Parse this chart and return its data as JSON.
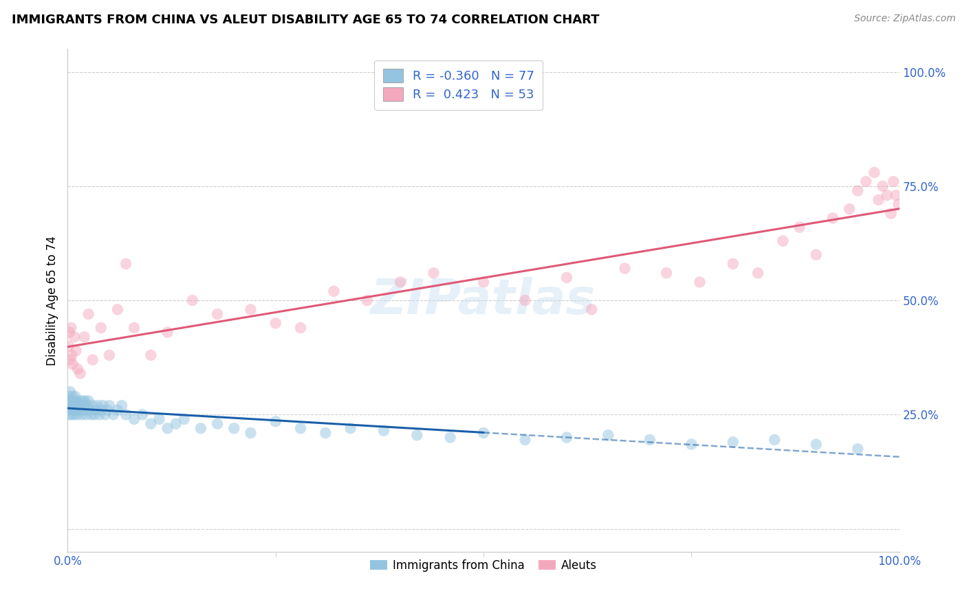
{
  "title": "IMMIGRANTS FROM CHINA VS ALEUT DISABILITY AGE 65 TO 74 CORRELATION CHART",
  "source": "Source: ZipAtlas.com",
  "ylabel": "Disability Age 65 to 74",
  "blue_R": "-0.360",
  "blue_N": "77",
  "pink_R": "0.423",
  "pink_N": "53",
  "blue_color": "#94c4e0",
  "pink_color": "#f4a8be",
  "blue_line_color": "#1a5fa8",
  "pink_line_color": "#e05878",
  "legend_label_blue": "Immigrants from China",
  "legend_label_pink": "Aleuts",
  "legend_text_color": "#3366cc",
  "title_color": "#000000",
  "source_color": "#888888",
  "grid_color": "#c8c8c8",
  "axis_tick_color": "#3366cc",
  "background_color": "#ffffff",
  "blue_scatter_x": [
    0.001,
    0.002,
    0.002,
    0.003,
    0.003,
    0.004,
    0.004,
    0.005,
    0.005,
    0.006,
    0.006,
    0.007,
    0.007,
    0.008,
    0.008,
    0.009,
    0.009,
    0.01,
    0.01,
    0.011,
    0.012,
    0.013,
    0.014,
    0.015,
    0.016,
    0.017,
    0.018,
    0.019,
    0.02,
    0.021,
    0.022,
    0.023,
    0.025,
    0.026,
    0.028,
    0.03,
    0.032,
    0.034,
    0.036,
    0.038,
    0.04,
    0.042,
    0.045,
    0.048,
    0.05,
    0.055,
    0.06,
    0.065,
    0.07,
    0.08,
    0.09,
    0.1,
    0.11,
    0.12,
    0.13,
    0.14,
    0.16,
    0.18,
    0.2,
    0.22,
    0.25,
    0.28,
    0.31,
    0.34,
    0.38,
    0.42,
    0.46,
    0.5,
    0.55,
    0.6,
    0.65,
    0.7,
    0.75,
    0.8,
    0.85,
    0.9,
    0.95
  ],
  "blue_scatter_y": [
    0.27,
    0.29,
    0.25,
    0.28,
    0.3,
    0.26,
    0.28,
    0.27,
    0.25,
    0.29,
    0.27,
    0.26,
    0.28,
    0.25,
    0.27,
    0.29,
    0.26,
    0.27,
    0.28,
    0.26,
    0.25,
    0.27,
    0.28,
    0.26,
    0.27,
    0.25,
    0.28,
    0.26,
    0.27,
    0.28,
    0.25,
    0.27,
    0.28,
    0.26,
    0.25,
    0.27,
    0.25,
    0.26,
    0.27,
    0.25,
    0.26,
    0.27,
    0.25,
    0.26,
    0.27,
    0.25,
    0.26,
    0.27,
    0.25,
    0.24,
    0.25,
    0.23,
    0.24,
    0.22,
    0.23,
    0.24,
    0.22,
    0.23,
    0.22,
    0.21,
    0.235,
    0.22,
    0.21,
    0.22,
    0.215,
    0.205,
    0.2,
    0.21,
    0.195,
    0.2,
    0.205,
    0.195,
    0.185,
    0.19,
    0.195,
    0.185,
    0.175
  ],
  "pink_scatter_x": [
    0.001,
    0.002,
    0.003,
    0.004,
    0.005,
    0.006,
    0.008,
    0.01,
    0.012,
    0.015,
    0.02,
    0.025,
    0.03,
    0.04,
    0.05,
    0.06,
    0.07,
    0.08,
    0.1,
    0.12,
    0.15,
    0.18,
    0.22,
    0.25,
    0.28,
    0.32,
    0.36,
    0.4,
    0.44,
    0.5,
    0.55,
    0.6,
    0.63,
    0.67,
    0.72,
    0.76,
    0.8,
    0.83,
    0.86,
    0.88,
    0.9,
    0.92,
    0.94,
    0.95,
    0.96,
    0.97,
    0.975,
    0.98,
    0.985,
    0.99,
    0.993,
    0.996,
    0.999
  ],
  "pink_scatter_y": [
    0.4,
    0.43,
    0.37,
    0.44,
    0.38,
    0.36,
    0.42,
    0.39,
    0.35,
    0.34,
    0.42,
    0.47,
    0.37,
    0.44,
    0.38,
    0.48,
    0.58,
    0.44,
    0.38,
    0.43,
    0.5,
    0.47,
    0.48,
    0.45,
    0.44,
    0.52,
    0.5,
    0.54,
    0.56,
    0.54,
    0.5,
    0.55,
    0.48,
    0.57,
    0.56,
    0.54,
    0.58,
    0.56,
    0.63,
    0.66,
    0.6,
    0.68,
    0.7,
    0.74,
    0.76,
    0.78,
    0.72,
    0.75,
    0.73,
    0.69,
    0.76,
    0.73,
    0.71
  ],
  "xlim": [
    0.0,
    1.0
  ],
  "ylim": [
    -0.05,
    1.05
  ],
  "yticks": [
    0.0,
    0.25,
    0.5,
    0.75,
    1.0
  ],
  "ytick_labels": [
    "",
    "25.0%",
    "50.0%",
    "75.0%",
    "100.0%"
  ],
  "xtick_labels": [
    "0.0%",
    "100.0%"
  ],
  "blue_trend_x0": 0.0,
  "blue_trend_x_solid_end": 0.5,
  "blue_trend_x1": 1.0,
  "pink_trend_x0": 0.0,
  "pink_trend_x1": 1.0
}
